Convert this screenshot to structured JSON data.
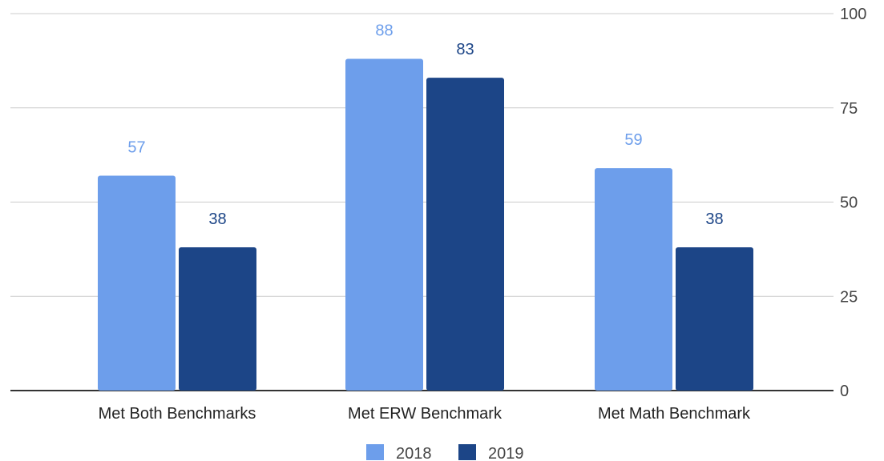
{
  "chart_data": {
    "type": "bar",
    "categories": [
      "Met Both Benchmarks",
      "Met ERW Benchmark",
      "Met Math Benchmark"
    ],
    "series": [
      {
        "name": "2018",
        "values": [
          57,
          88,
          59
        ],
        "color": "#6d9eeb"
      },
      {
        "name": "2019",
        "values": [
          38,
          83,
          38
        ],
        "color": "#1c4587"
      }
    ],
    "ylim": [
      0,
      100
    ],
    "yticks": [
      0,
      25,
      50,
      75,
      100
    ],
    "title": "",
    "xlabel": "",
    "ylabel": "",
    "grid": true,
    "legend_position": "bottom",
    "axis_side": "right",
    "data_labels": true
  }
}
